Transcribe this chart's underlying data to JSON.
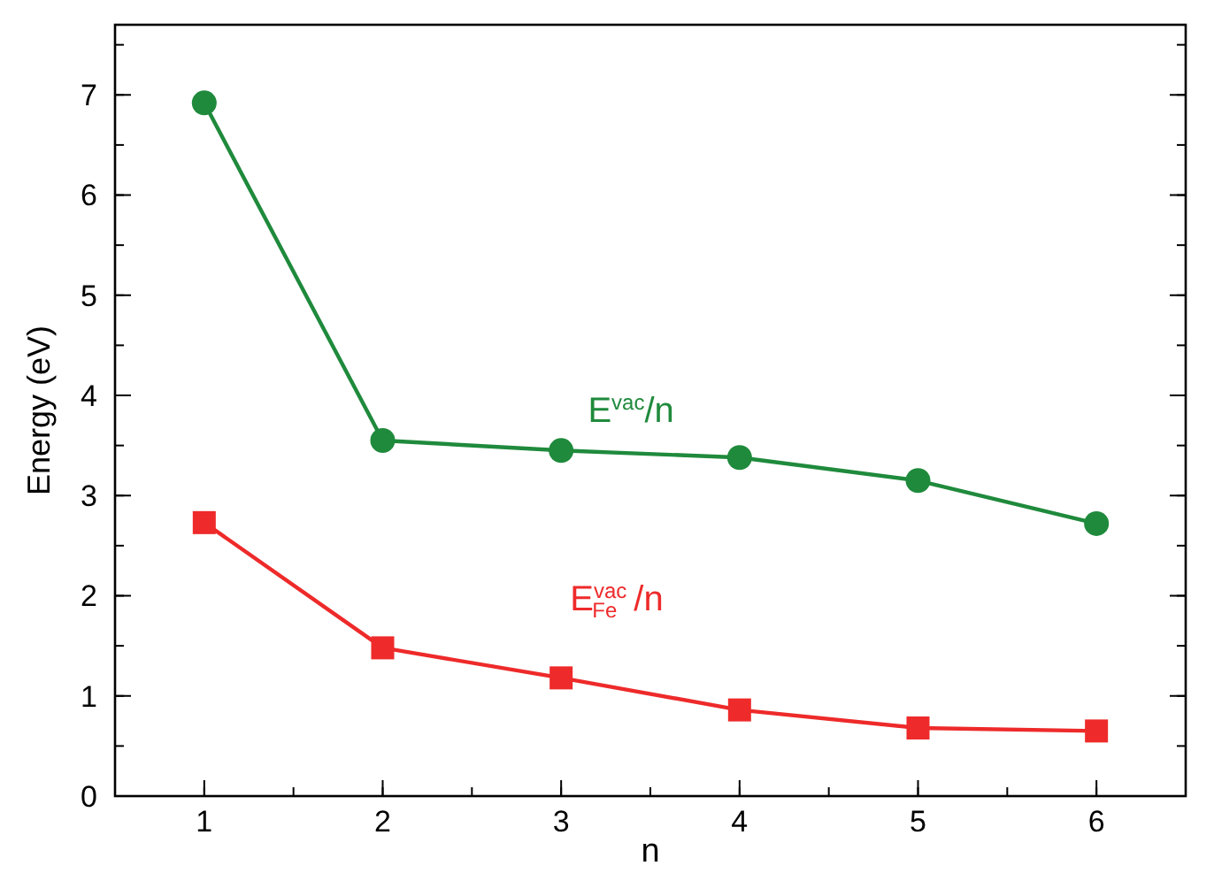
{
  "chart_data": {
    "type": "line",
    "xlabel": "n",
    "ylabel": "Energy (eV)",
    "x": [
      1,
      2,
      3,
      4,
      5,
      6
    ],
    "xlim": [
      0.5,
      6.5
    ],
    "xticks": [
      1,
      2,
      3,
      4,
      5,
      6
    ],
    "ylim": [
      0,
      7.7
    ],
    "yticks": [
      0,
      1,
      2,
      3,
      4,
      5,
      6,
      7
    ],
    "legend": false,
    "grid": false,
    "series": [
      {
        "name": "E$^{vac}$/n",
        "color": "#1f8a3c",
        "marker": "circle",
        "values": [
          6.92,
          3.55,
          3.45,
          3.38,
          3.15,
          2.72
        ]
      },
      {
        "name": "E$^{vac}$$_{Fe}$/n",
        "color": "#ee2a2a",
        "marker": "square",
        "values": [
          2.73,
          1.48,
          1.18,
          0.86,
          0.68,
          0.65
        ]
      }
    ]
  }
}
